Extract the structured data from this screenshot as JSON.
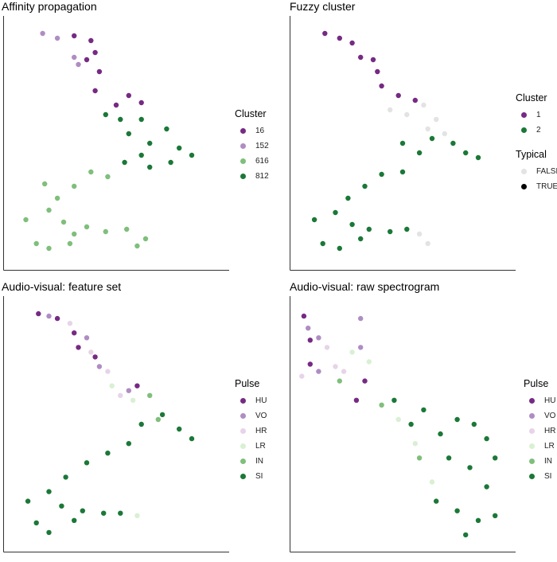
{
  "chart_data": [
    {
      "type": "scatter",
      "title": "Affinity propagation",
      "xlabel": "",
      "ylabel": "",
      "xlim": [
        0,
        1
      ],
      "ylim": [
        0,
        1
      ],
      "grid": false,
      "legend_position": "right",
      "legends": [
        {
          "title": "Cluster",
          "items": [
            {
              "label": "16",
              "color": "#762a83"
            },
            {
              "label": "152",
              "color": "#af8dc3"
            },
            {
              "label": "616",
              "color": "#7fbf7b"
            },
            {
              "label": "812",
              "color": "#1b7837"
            }
          ]
        }
      ],
      "series": [
        {
          "label": "16",
          "color": "#762a83",
          "points": [
            [
              0.3,
              0.95
            ],
            [
              0.38,
              0.93
            ],
            [
              0.4,
              0.88
            ],
            [
              0.36,
              0.85
            ],
            [
              0.42,
              0.8
            ],
            [
              0.4,
              0.72
            ],
            [
              0.5,
              0.66
            ],
            [
              0.56,
              0.7
            ],
            [
              0.62,
              0.67
            ]
          ]
        },
        {
          "label": "152",
          "color": "#af8dc3",
          "points": [
            [
              0.15,
              0.96
            ],
            [
              0.22,
              0.94
            ],
            [
              0.3,
              0.86
            ],
            [
              0.32,
              0.83
            ]
          ]
        },
        {
          "label": "812",
          "color": "#1b7837",
          "points": [
            [
              0.45,
              0.62
            ],
            [
              0.52,
              0.6
            ],
            [
              0.56,
              0.54
            ],
            [
              0.62,
              0.6
            ],
            [
              0.66,
              0.5
            ],
            [
              0.74,
              0.56
            ],
            [
              0.8,
              0.48
            ],
            [
              0.86,
              0.45
            ],
            [
              0.76,
              0.42
            ],
            [
              0.66,
              0.4
            ],
            [
              0.62,
              0.45
            ],
            [
              0.54,
              0.42
            ]
          ]
        },
        {
          "label": "616",
          "color": "#7fbf7b",
          "points": [
            [
              0.46,
              0.36
            ],
            [
              0.38,
              0.38
            ],
            [
              0.3,
              0.32
            ],
            [
              0.22,
              0.27
            ],
            [
              0.16,
              0.33
            ],
            [
              0.18,
              0.22
            ],
            [
              0.25,
              0.17
            ],
            [
              0.3,
              0.12
            ],
            [
              0.36,
              0.15
            ],
            [
              0.45,
              0.13
            ],
            [
              0.55,
              0.14
            ],
            [
              0.64,
              0.1
            ],
            [
              0.07,
              0.18
            ],
            [
              0.12,
              0.08
            ],
            [
              0.18,
              0.06
            ],
            [
              0.28,
              0.08
            ],
            [
              0.6,
              0.07
            ]
          ]
        }
      ]
    },
    {
      "type": "scatter",
      "title": "Fuzzy cluster",
      "xlabel": "",
      "ylabel": "",
      "xlim": [
        0,
        1
      ],
      "ylim": [
        0,
        1
      ],
      "grid": false,
      "legend_position": "right",
      "legends": [
        {
          "title": "Cluster",
          "items": [
            {
              "label": "1",
              "color": "#762a83"
            },
            {
              "label": "2",
              "color": "#1b7837"
            }
          ]
        },
        {
          "title": "Typical",
          "items": [
            {
              "label": "FALSE",
              "color": "#e3e3e3"
            },
            {
              "label": "TRUE",
              "color": "#000000"
            }
          ]
        }
      ],
      "series": [
        {
          "label": "1",
          "color": "#762a83",
          "points": [
            [
              0.13,
              0.96
            ],
            [
              0.2,
              0.94
            ],
            [
              0.26,
              0.92
            ],
            [
              0.3,
              0.86
            ],
            [
              0.36,
              0.85
            ],
            [
              0.38,
              0.8
            ],
            [
              0.4,
              0.74
            ],
            [
              0.48,
              0.7
            ],
            [
              0.56,
              0.68
            ]
          ]
        },
        {
          "label": "2",
          "color": "#1b7837",
          "points": [
            [
              0.5,
              0.5
            ],
            [
              0.58,
              0.46
            ],
            [
              0.64,
              0.52
            ],
            [
              0.74,
              0.5
            ],
            [
              0.8,
              0.46
            ],
            [
              0.86,
              0.44
            ],
            [
              0.5,
              0.38
            ],
            [
              0.4,
              0.37
            ],
            [
              0.32,
              0.32
            ],
            [
              0.24,
              0.27
            ],
            [
              0.18,
              0.21
            ],
            [
              0.26,
              0.16
            ],
            [
              0.34,
              0.14
            ],
            [
              0.44,
              0.13
            ],
            [
              0.52,
              0.14
            ],
            [
              0.08,
              0.18
            ],
            [
              0.12,
              0.08
            ],
            [
              0.2,
              0.06
            ],
            [
              0.3,
              0.1
            ]
          ]
        },
        {
          "label": "FALSE",
          "color": "#e3e3e3",
          "points": [
            [
              0.44,
              0.64
            ],
            [
              0.52,
              0.62
            ],
            [
              0.6,
              0.66
            ],
            [
              0.66,
              0.6
            ],
            [
              0.7,
              0.54
            ],
            [
              0.62,
              0.56
            ],
            [
              0.58,
              0.12
            ],
            [
              0.62,
              0.08
            ]
          ]
        }
      ]
    },
    {
      "type": "scatter",
      "title": "Audio-visual: feature set",
      "xlabel": "",
      "ylabel": "",
      "xlim": [
        0,
        1
      ],
      "ylim": [
        0,
        1
      ],
      "grid": false,
      "legend_position": "right",
      "legends": [
        {
          "title": "Pulse",
          "items": [
            {
              "label": "HU",
              "color": "#762a83"
            },
            {
              "label": "VO",
              "color": "#af8dc3"
            },
            {
              "label": "HR",
              "color": "#e7d4e8"
            },
            {
              "label": "LR",
              "color": "#d9f0d3"
            },
            {
              "label": "IN",
              "color": "#7fbf7b"
            },
            {
              "label": "SI",
              "color": "#1b7837"
            }
          ]
        }
      ],
      "series": [
        {
          "label": "HU",
          "color": "#762a83",
          "points": [
            [
              0.13,
              0.96
            ],
            [
              0.22,
              0.94
            ],
            [
              0.3,
              0.88
            ],
            [
              0.32,
              0.82
            ],
            [
              0.4,
              0.78
            ],
            [
              0.6,
              0.66
            ]
          ]
        },
        {
          "label": "VO",
          "color": "#af8dc3",
          "points": [
            [
              0.18,
              0.95
            ],
            [
              0.36,
              0.86
            ],
            [
              0.42,
              0.74
            ],
            [
              0.56,
              0.64
            ]
          ]
        },
        {
          "label": "HR",
          "color": "#e7d4e8",
          "points": [
            [
              0.28,
              0.92
            ],
            [
              0.38,
              0.8
            ],
            [
              0.46,
              0.72
            ],
            [
              0.52,
              0.62
            ]
          ]
        },
        {
          "label": "LR",
          "color": "#d9f0d3",
          "points": [
            [
              0.48,
              0.66
            ],
            [
              0.58,
              0.6
            ],
            [
              0.6,
              0.12
            ]
          ]
        },
        {
          "label": "IN",
          "color": "#7fbf7b",
          "points": [
            [
              0.66,
              0.62
            ],
            [
              0.7,
              0.52
            ]
          ]
        },
        {
          "label": "SI",
          "color": "#1b7837",
          "points": [
            [
              0.62,
              0.5
            ],
            [
              0.72,
              0.54
            ],
            [
              0.8,
              0.48
            ],
            [
              0.86,
              0.44
            ],
            [
              0.56,
              0.42
            ],
            [
              0.46,
              0.38
            ],
            [
              0.36,
              0.34
            ],
            [
              0.26,
              0.28
            ],
            [
              0.18,
              0.22
            ],
            [
              0.24,
              0.16
            ],
            [
              0.34,
              0.14
            ],
            [
              0.44,
              0.13
            ],
            [
              0.52,
              0.13
            ],
            [
              0.08,
              0.18
            ],
            [
              0.12,
              0.09
            ],
            [
              0.18,
              0.05
            ],
            [
              0.3,
              0.1
            ]
          ]
        }
      ]
    },
    {
      "type": "scatter",
      "title": "Audio-visual: raw spectrogram",
      "xlabel": "",
      "ylabel": "",
      "xlim": [
        0,
        1
      ],
      "ylim": [
        0,
        1
      ],
      "grid": false,
      "legend_position": "right",
      "legends": [
        {
          "title": "Pulse",
          "items": [
            {
              "label": "HU",
              "color": "#762a83"
            },
            {
              "label": "VO",
              "color": "#af8dc3"
            },
            {
              "label": "HR",
              "color": "#e7d4e8"
            },
            {
              "label": "LR",
              "color": "#d9f0d3"
            },
            {
              "label": "IN",
              "color": "#7fbf7b"
            },
            {
              "label": "SI",
              "color": "#1b7837"
            }
          ]
        }
      ],
      "series": [
        {
          "label": "HU",
          "color": "#762a83",
          "points": [
            [
              0.03,
              0.95
            ],
            [
              0.06,
              0.85
            ],
            [
              0.06,
              0.75
            ],
            [
              0.28,
              0.6
            ],
            [
              0.32,
              0.68
            ]
          ]
        },
        {
          "label": "VO",
          "color": "#af8dc3",
          "points": [
            [
              0.05,
              0.9
            ],
            [
              0.1,
              0.86
            ],
            [
              0.1,
              0.72
            ],
            [
              0.3,
              0.94
            ],
            [
              0.3,
              0.82
            ]
          ]
        },
        {
          "label": "HR",
          "color": "#e7d4e8",
          "points": [
            [
              0.14,
              0.82
            ],
            [
              0.02,
              0.7
            ],
            [
              0.18,
              0.74
            ],
            [
              0.22,
              0.72
            ]
          ]
        },
        {
          "label": "LR",
          "color": "#d9f0d3",
          "points": [
            [
              0.26,
              0.8
            ],
            [
              0.34,
              0.76
            ],
            [
              0.48,
              0.52
            ],
            [
              0.56,
              0.42
            ],
            [
              0.64,
              0.26
            ]
          ]
        },
        {
          "label": "IN",
          "color": "#7fbf7b",
          "points": [
            [
              0.2,
              0.68
            ],
            [
              0.4,
              0.58
            ],
            [
              0.58,
              0.36
            ]
          ]
        },
        {
          "label": "SI",
          "color": "#1b7837",
          "points": [
            [
              0.46,
              0.6
            ],
            [
              0.54,
              0.5
            ],
            [
              0.6,
              0.56
            ],
            [
              0.68,
              0.46
            ],
            [
              0.76,
              0.52
            ],
            [
              0.84,
              0.5
            ],
            [
              0.9,
              0.44
            ],
            [
              0.94,
              0.36
            ],
            [
              0.72,
              0.36
            ],
            [
              0.82,
              0.32
            ],
            [
              0.9,
              0.24
            ],
            [
              0.66,
              0.18
            ],
            [
              0.76,
              0.14
            ],
            [
              0.86,
              0.1
            ],
            [
              0.94,
              0.12
            ],
            [
              0.8,
              0.04
            ]
          ]
        }
      ]
    }
  ]
}
